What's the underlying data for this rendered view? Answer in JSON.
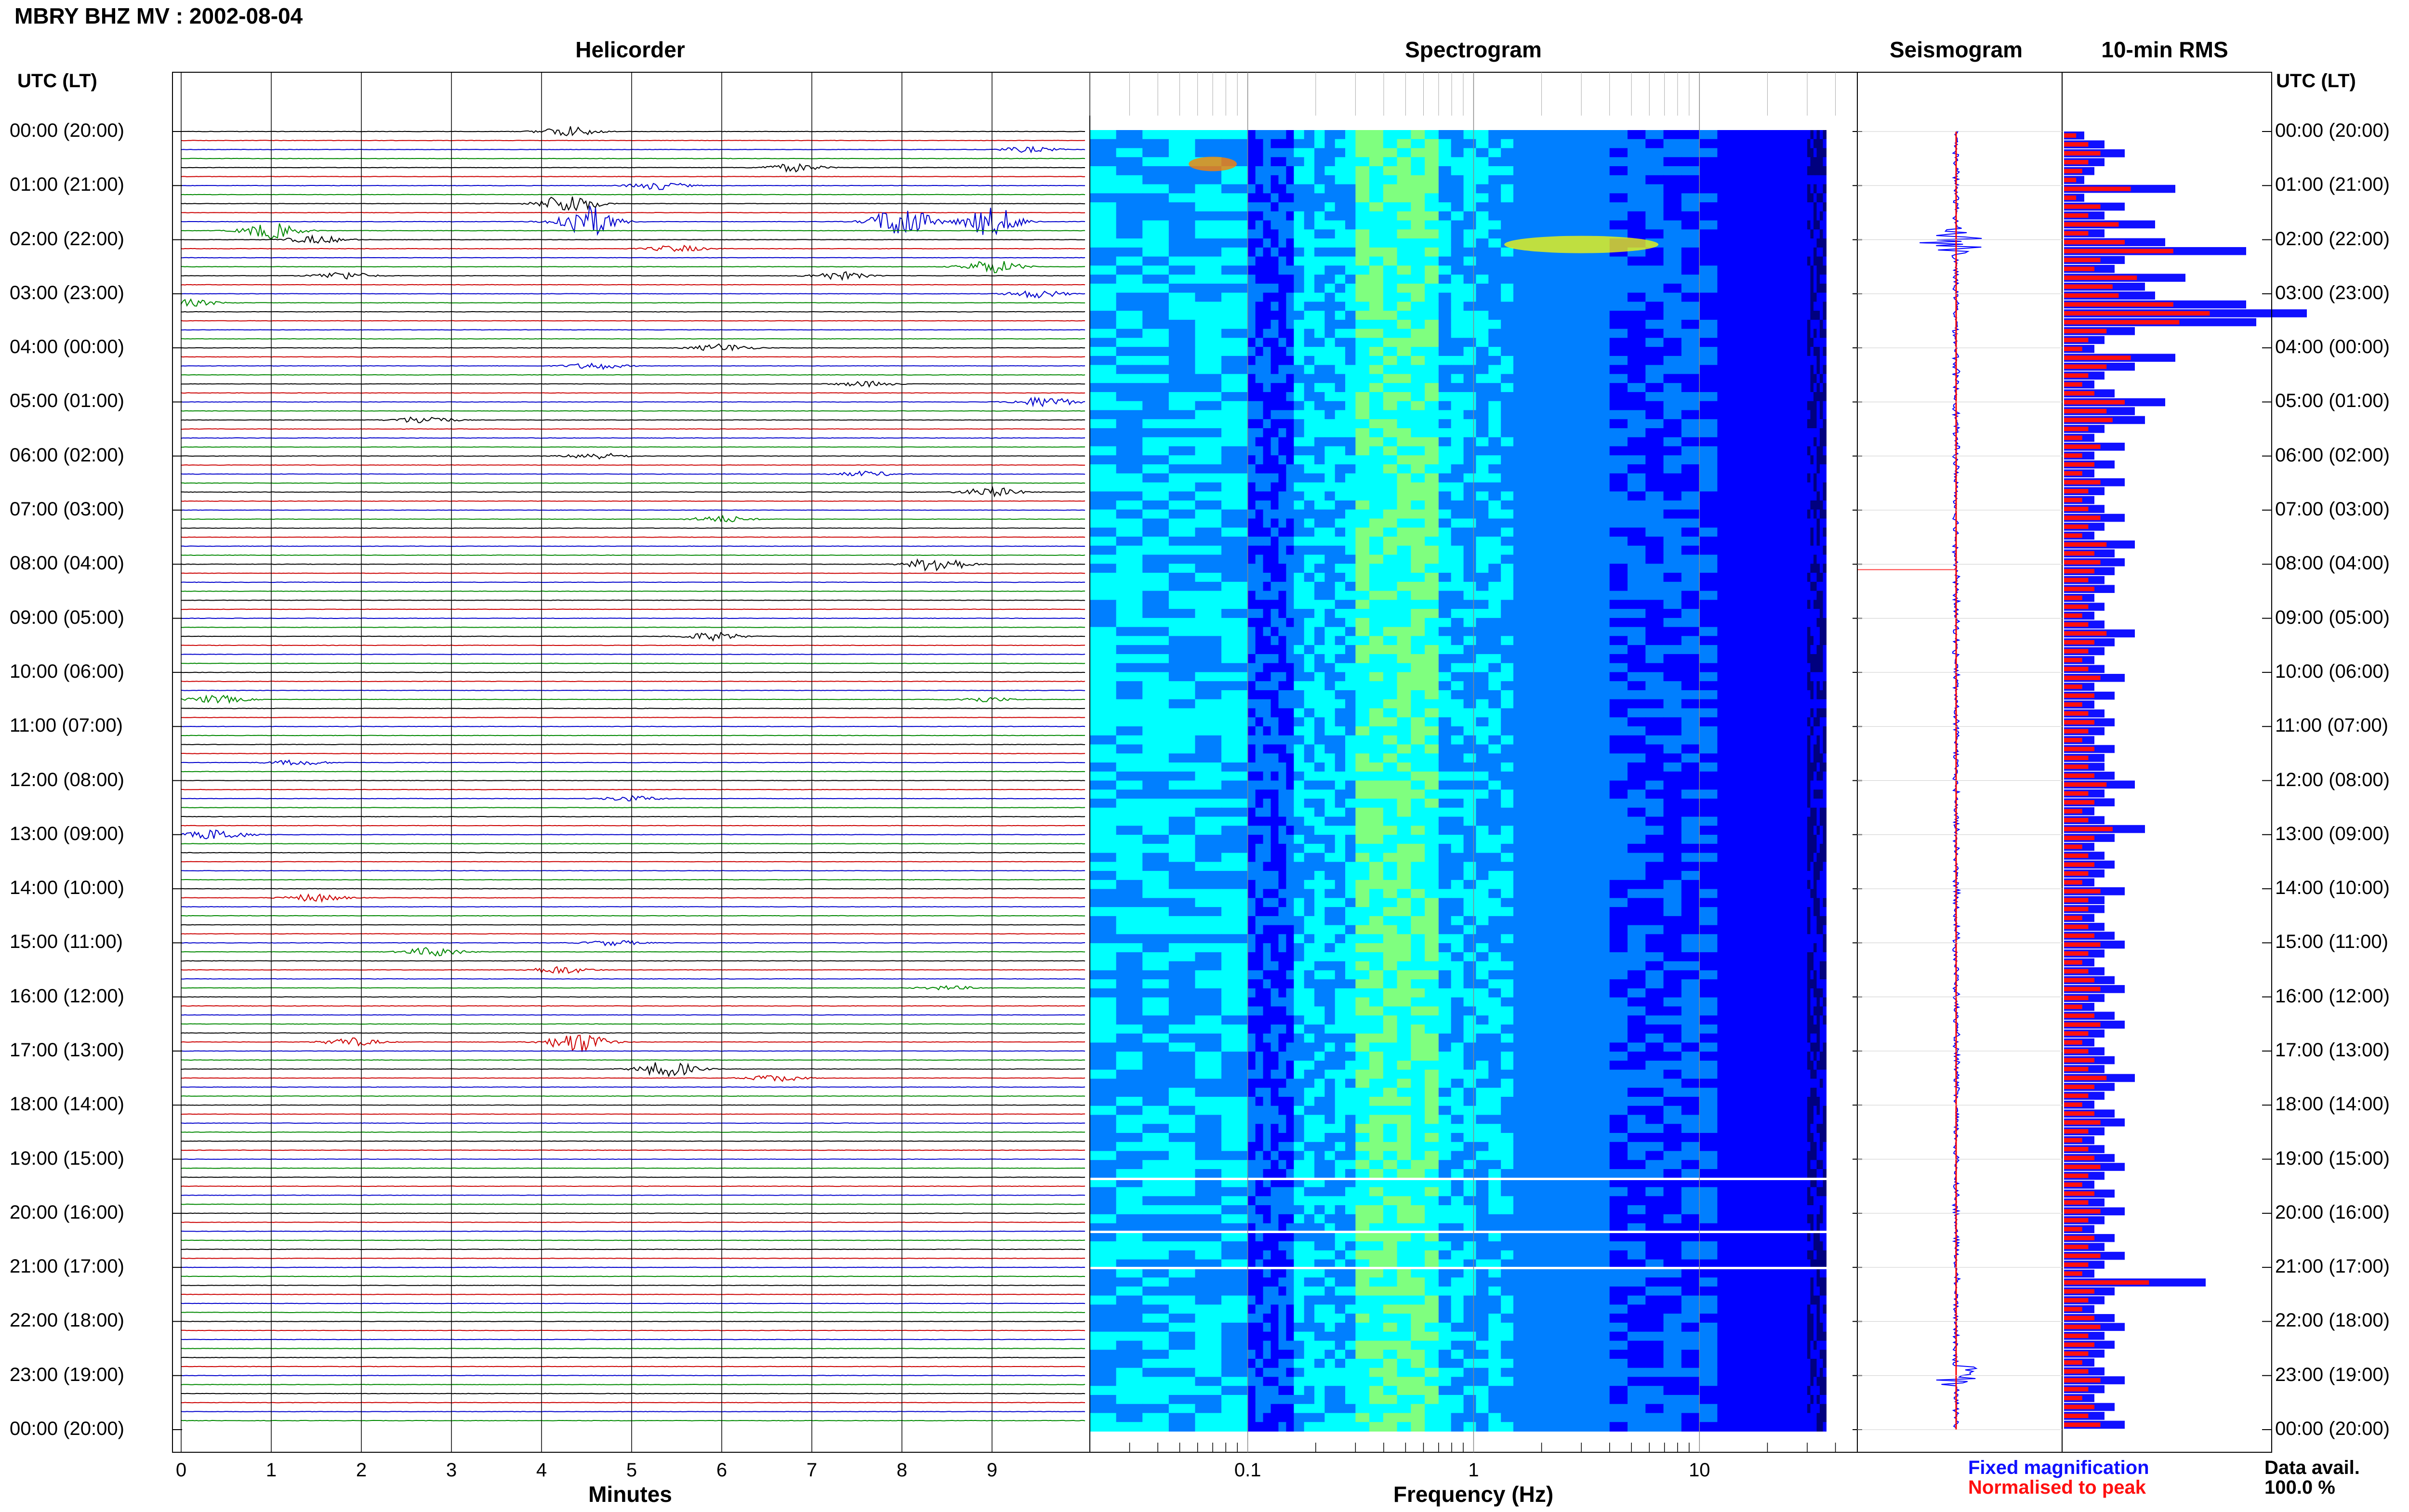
{
  "header": {
    "title": "MBRY BHZ MV : 2002-08-04",
    "utc_label_left": "UTC (LT)",
    "utc_label_right": "UTC (LT)"
  },
  "panels": {
    "helicorder": "Helicorder",
    "spectrogram": "Spectrogram",
    "seismogram": "Seismogram",
    "rms": "10-min RMS"
  },
  "hour_labels": [
    "00:00 (20:00)",
    "01:00 (21:00)",
    "02:00 (22:00)",
    "03:00 (23:00)",
    "04:00 (00:00)",
    "05:00 (01:00)",
    "06:00 (02:00)",
    "07:00 (03:00)",
    "08:00 (04:00)",
    "09:00 (05:00)",
    "10:00 (06:00)",
    "11:00 (07:00)",
    "12:00 (08:00)",
    "13:00 (09:00)",
    "14:00 (10:00)",
    "15:00 (11:00)",
    "16:00 (12:00)",
    "17:00 (13:00)",
    "18:00 (14:00)",
    "19:00 (15:00)",
    "20:00 (16:00)",
    "21:00 (17:00)",
    "22:00 (18:00)",
    "23:00 (19:00)",
    "00:00 (20:00)"
  ],
  "legend": {
    "fixed": "Fixed magnification",
    "normalised": "Normalised to peak",
    "fixed_color": "#1010ff",
    "normalised_color": "#ff1010"
  },
  "availability": {
    "label": "Data avail.",
    "value": "100.0 %"
  },
  "chart_data": [
    {
      "type": "line",
      "name": "Helicorder",
      "xlabel": "Minutes",
      "x_ticks": [
        0,
        1,
        2,
        3,
        4,
        5,
        6,
        7,
        8,
        9
      ],
      "xlim": [
        0,
        10
      ],
      "trace_colors": [
        "#000000",
        "#cc0000",
        "#0000cc",
        "#008800"
      ],
      "traces_per_hour": 6,
      "events": [
        {
          "row": 0,
          "minute": 4.3,
          "amp": 0.8
        },
        {
          "row": 2,
          "minute": 9.4,
          "amp": 0.4
        },
        {
          "row": 4,
          "minute": 6.8,
          "amp": 0.6
        },
        {
          "row": 6,
          "minute": 5.3,
          "amp": 0.6
        },
        {
          "row": 8,
          "minute": 4.3,
          "amp": 1.5
        },
        {
          "row": 10,
          "minute": 4.5,
          "amp": 2.5
        },
        {
          "row": 10,
          "minute": 8.0,
          "amp": 2.5
        },
        {
          "row": 10,
          "minute": 9.0,
          "amp": 2.2
        },
        {
          "row": 11,
          "minute": 1.0,
          "amp": 1.2
        },
        {
          "row": 12,
          "minute": 1.5,
          "amp": 0.6
        },
        {
          "row": 13,
          "minute": 5.5,
          "amp": 0.5
        },
        {
          "row": 15,
          "minute": 9.0,
          "amp": 1.0
        },
        {
          "row": 16,
          "minute": 1.8,
          "amp": 0.6
        },
        {
          "row": 16,
          "minute": 7.3,
          "amp": 0.6
        },
        {
          "row": 18,
          "minute": 9.5,
          "amp": 0.6
        },
        {
          "row": 19,
          "minute": 0.1,
          "amp": 0.5
        },
        {
          "row": 24,
          "minute": 6.0,
          "amp": 0.6
        },
        {
          "row": 26,
          "minute": 4.6,
          "amp": 0.5
        },
        {
          "row": 28,
          "minute": 7.6,
          "amp": 0.4
        },
        {
          "row": 30,
          "minute": 9.6,
          "amp": 0.8
        },
        {
          "row": 32,
          "minute": 2.7,
          "amp": 0.6
        },
        {
          "row": 36,
          "minute": 4.6,
          "amp": 0.5
        },
        {
          "row": 38,
          "minute": 7.6,
          "amp": 0.4
        },
        {
          "row": 40,
          "minute": 9.0,
          "amp": 0.7
        },
        {
          "row": 43,
          "minute": 6.0,
          "amp": 0.5
        },
        {
          "row": 48,
          "minute": 8.4,
          "amp": 1.2
        },
        {
          "row": 56,
          "minute": 5.9,
          "amp": 0.6
        },
        {
          "row": 63,
          "minute": 0.4,
          "amp": 0.6
        },
        {
          "row": 63,
          "minute": 8.9,
          "amp": 0.4
        },
        {
          "row": 70,
          "minute": 1.3,
          "amp": 0.4
        },
        {
          "row": 74,
          "minute": 5.0,
          "amp": 0.4
        },
        {
          "row": 78,
          "minute": 0.4,
          "amp": 0.8
        },
        {
          "row": 85,
          "minute": 1.5,
          "amp": 0.6
        },
        {
          "row": 90,
          "minute": 4.8,
          "amp": 0.4
        },
        {
          "row": 91,
          "minute": 2.8,
          "amp": 0.7
        },
        {
          "row": 93,
          "minute": 4.2,
          "amp": 0.6
        },
        {
          "row": 95,
          "minute": 8.5,
          "amp": 0.3
        },
        {
          "row": 101,
          "minute": 1.9,
          "amp": 0.6
        },
        {
          "row": 101,
          "minute": 4.4,
          "amp": 1.6
        },
        {
          "row": 104,
          "minute": 5.4,
          "amp": 1.2
        },
        {
          "row": 105,
          "minute": 6.6,
          "amp": 0.5
        }
      ]
    },
    {
      "type": "heatmap",
      "name": "Spectrogram",
      "xlabel": "Frequency (Hz)",
      "x_scale": "log",
      "x_ticks": [
        0.1,
        1,
        10
      ],
      "xlim": [
        0.02,
        50
      ],
      "colormap": [
        "#00007f",
        "#0000ff",
        "#007fff",
        "#00ffff",
        "#7fff7f",
        "#ffff00",
        "#ff7f00"
      ]
    },
    {
      "type": "line",
      "name": "Seismogram",
      "colors": [
        "#0000ff",
        "#ff0000"
      ]
    },
    {
      "type": "bar",
      "name": "10-min RMS",
      "orientation": "horizontal",
      "series_colors": [
        "#0000ff",
        "#ff0000"
      ],
      "series": [
        {
          "name": "Fixed magnification",
          "values": [
            0.1,
            0.2,
            0.3,
            0.2,
            0.15,
            0.1,
            0.55,
            0.1,
            0.3,
            0.2,
            0.45,
            0.2,
            0.5,
            0.9,
            0.3,
            0.25,
            0.6,
            0.4,
            0.45,
            0.9,
            1.2,
            0.95,
            0.35,
            0.2,
            0.15,
            0.55,
            0.35,
            0.2,
            0.15,
            0.25,
            0.5,
            0.35,
            0.4,
            0.2,
            0.15,
            0.3,
            0.15,
            0.25,
            0.15,
            0.3,
            0.2,
            0.15,
            0.2,
            0.3,
            0.2,
            0.15,
            0.35,
            0.25,
            0.3,
            0.25,
            0.2,
            0.25,
            0.15,
            0.2,
            0.15,
            0.2,
            0.35,
            0.25,
            0.2,
            0.15,
            0.2,
            0.3,
            0.15,
            0.25,
            0.15,
            0.2,
            0.25,
            0.2,
            0.15,
            0.25,
            0.2,
            0.2,
            0.25,
            0.35,
            0.2,
            0.25,
            0.15,
            0.2,
            0.4,
            0.25,
            0.15,
            0.2,
            0.25,
            0.2,
            0.15,
            0.3,
            0.2,
            0.2,
            0.15,
            0.2,
            0.25,
            0.3,
            0.2,
            0.15,
            0.2,
            0.25,
            0.3,
            0.2,
            0.15,
            0.25,
            0.3,
            0.2,
            0.15,
            0.2,
            0.25,
            0.2,
            0.35,
            0.25,
            0.2,
            0.15,
            0.25,
            0.3,
            0.2,
            0.15,
            0.2,
            0.25,
            0.3,
            0.2,
            0.15,
            0.25,
            0.2,
            0.3,
            0.2,
            0.15,
            0.25,
            0.2,
            0.3,
            0.2,
            0.15,
            0.7,
            0.25,
            0.2,
            0.15,
            0.25,
            0.3,
            0.2,
            0.25,
            0.2,
            0.15,
            0.2,
            0.3,
            0.2,
            0.15,
            0.25,
            0.2,
            0.3
          ],
          "note_unused": null
        },
        {
          "name": "Normalised to peak",
          "values": []
        }
      ]
    }
  ]
}
